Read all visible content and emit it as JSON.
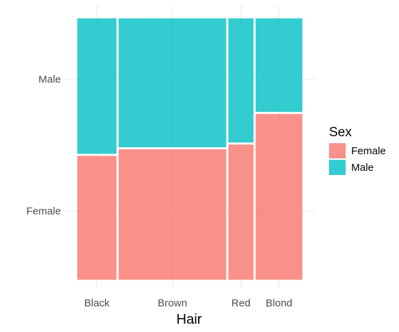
{
  "chart_data": {
    "type": "mosaic",
    "x_variable": "Hair",
    "xlabel": "Hair",
    "ylabel": "",
    "categories": [
      "Black",
      "Brown",
      "Red",
      "Blond"
    ],
    "category_share": [
      0.182,
      0.483,
      0.12,
      0.215
    ],
    "fill_variable": "Sex",
    "legend": {
      "title": "Sex",
      "position": "right",
      "entries": [
        "Female",
        "Male"
      ]
    },
    "y_tick_labels": [
      "Female",
      "Male"
    ],
    "series": [
      {
        "name": "Female",
        "color": "#F8766D",
        "values": [
          0.478,
          0.503,
          0.521,
          0.637
        ]
      },
      {
        "name": "Male",
        "color": "#00BFC4",
        "values": [
          0.522,
          0.497,
          0.479,
          0.363
        ]
      }
    ],
    "grid": true,
    "theme": "minimal"
  }
}
